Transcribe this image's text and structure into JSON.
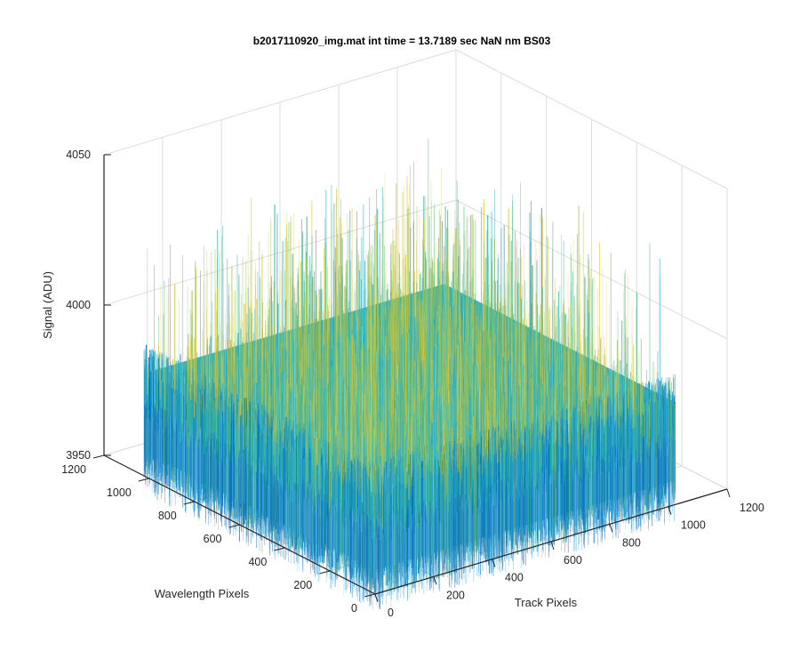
{
  "chart_data": {
    "type": "surface",
    "title": "b2017110920_img.mat int time = 13.7189 sec  NaN nm BS03",
    "xlabel": "Track Pixels",
    "ylabel": "Wavelength Pixels",
    "zlabel": "Signal (ADU)",
    "xlim": [
      0,
      1200
    ],
    "ylim": [
      0,
      1200
    ],
    "zlim": [
      3950,
      4050
    ],
    "x_ticks": [
      "0",
      "200",
      "400",
      "600",
      "800",
      "1000",
      "1200"
    ],
    "y_ticks": [
      "0",
      "200",
      "400",
      "600",
      "800",
      "1000",
      "1200"
    ],
    "z_ticks": [
      "3950",
      "4000",
      "4050"
    ],
    "grid": true,
    "data_extent": {
      "x": [
        1,
        1024
      ],
      "y": [
        1,
        1024
      ]
    },
    "signal_level_mean": 3980,
    "signal_noise_range": [
      3958,
      4020
    ],
    "colormap": [
      "#0072bd",
      "#1a8fd0",
      "#28a8c8",
      "#33b9a9",
      "#5cc089",
      "#a7c44e",
      "#e0c93a"
    ],
    "edge_color": "#0b5ea8"
  }
}
